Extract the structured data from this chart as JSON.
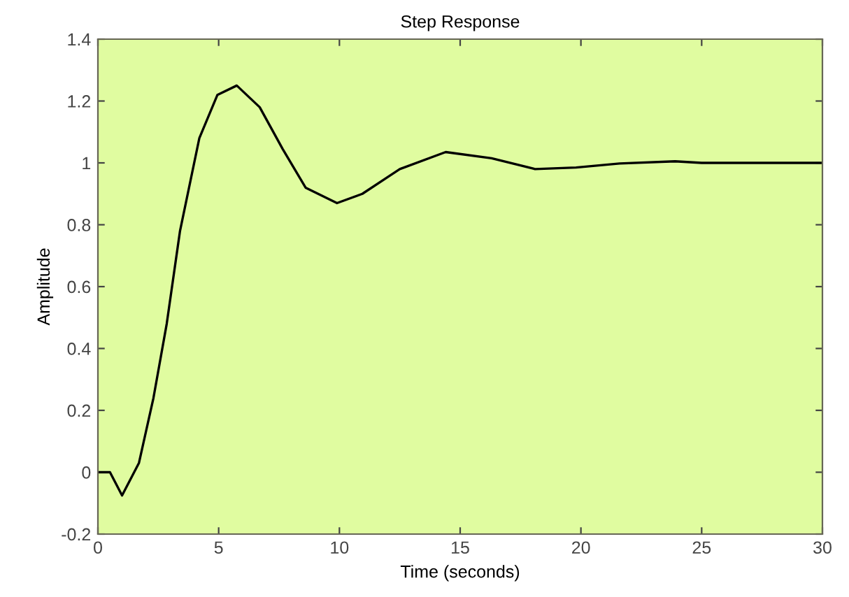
{
  "chart_data": {
    "type": "line",
    "title": "Step Response",
    "xlabel": "Time (seconds)",
    "ylabel": "Amplitude",
    "xlim": [
      0,
      30
    ],
    "ylim": [
      -0.2,
      1.4
    ],
    "xticks": [
      0,
      5,
      10,
      15,
      20,
      25,
      30
    ],
    "yticks": [
      -0.2,
      0,
      0.2,
      0.4,
      0.6,
      0.8,
      1,
      1.2,
      1.4
    ],
    "grid": false,
    "series": [
      {
        "color": "#000000",
        "x": [
          0,
          0.5,
          1.0,
          1.7,
          2.3,
          2.85,
          3.4,
          4.2,
          4.95,
          5.75,
          6.7,
          7.65,
          8.6,
          9.9,
          10.95,
          12.5,
          14.4,
          16.3,
          18.1,
          19.8,
          21.6,
          23.9,
          25,
          30
        ],
        "values": [
          0,
          0,
          -0.075,
          0.03,
          0.24,
          0.48,
          0.78,
          1.08,
          1.22,
          1.25,
          1.18,
          1.045,
          0.92,
          0.87,
          0.9,
          0.98,
          1.035,
          1.015,
          0.98,
          0.985,
          0.998,
          1.005,
          1.0,
          1.0
        ]
      }
    ]
  }
}
